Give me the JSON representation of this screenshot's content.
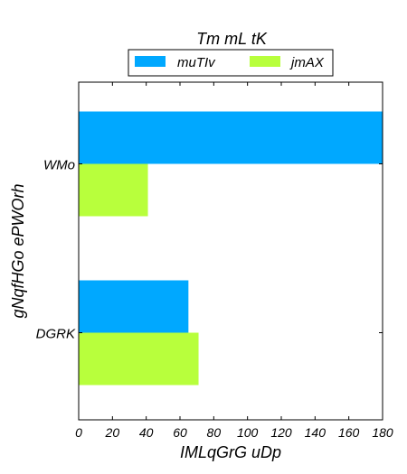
{
  "chart_data": {
    "type": "bar",
    "orientation": "horizontal",
    "title": "Tm  mL tK",
    "xlabel": "IMLqGrG uDp",
    "ylabel": "gNqfHGo ePWOrh",
    "categories": [
      "WMo",
      "DGRK"
    ],
    "series": [
      {
        "name": "muTIv",
        "color": "#00a8ff",
        "values": [
          180,
          65
        ]
      },
      {
        "name": "jmAX",
        "color": "#b8ff3c",
        "values": [
          41,
          71
        ]
      }
    ],
    "xlim": [
      0,
      180
    ],
    "xticks": [
      0,
      20,
      40,
      60,
      80,
      100,
      120,
      140,
      160,
      180
    ],
    "grid": false,
    "legend_position": "top-center"
  }
}
